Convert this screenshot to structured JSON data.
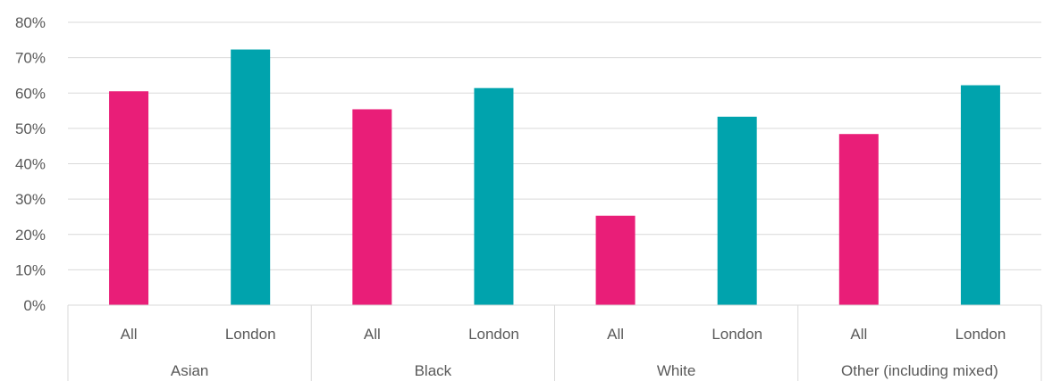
{
  "chart_data": {
    "type": "bar",
    "title": "",
    "xlabel": "",
    "ylabel": "",
    "ylim": [
      0,
      80
    ],
    "y_ticks": [
      "0%",
      "10%",
      "20%",
      "30%",
      "40%",
      "50%",
      "60%",
      "70%",
      "80%"
    ],
    "y_tick_values": [
      0,
      10,
      20,
      30,
      40,
      50,
      60,
      70,
      80
    ],
    "grid": true,
    "legend": "none",
    "groups": [
      {
        "label": "Asian",
        "bars": [
          {
            "label": "All",
            "value": 60.5,
            "color": "#E91E78"
          },
          {
            "label": "London",
            "value": 72.3,
            "color": "#00A3AD"
          }
        ]
      },
      {
        "label": "Black",
        "bars": [
          {
            "label": "All",
            "value": 55.4,
            "color": "#E91E78"
          },
          {
            "label": "London",
            "value": 61.4,
            "color": "#00A3AD"
          }
        ]
      },
      {
        "label": "White",
        "bars": [
          {
            "label": "All",
            "value": 25.3,
            "color": "#E91E78"
          },
          {
            "label": "London",
            "value": 53.3,
            "color": "#00A3AD"
          }
        ]
      },
      {
        "label": "Other (including mixed)",
        "bars": [
          {
            "label": "All",
            "value": 48.4,
            "color": "#E91E78"
          },
          {
            "label": "London",
            "value": 62.2,
            "color": "#00A3AD"
          }
        ]
      }
    ]
  }
}
